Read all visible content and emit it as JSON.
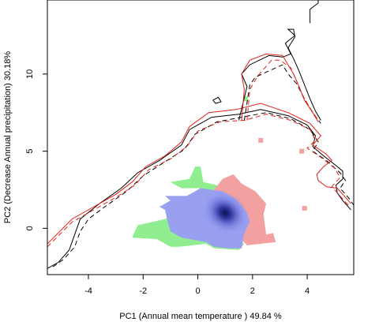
{
  "chart_data": {
    "type": "scatter",
    "title": "",
    "xlabel": "PC1 (Annual mean temperature ) 49.84 %",
    "ylabel": "PC2 (Decrease Annual precipitation) 30.18%",
    "xlim": [
      -5.5,
      5.7
    ],
    "ylim": [
      -3.0,
      14.8
    ],
    "x_ticks": [
      -4,
      -2,
      0,
      2,
      4
    ],
    "y_ticks": [
      0,
      5,
      10
    ],
    "x_tick_labels": [
      "-4",
      "-2",
      "0",
      "2",
      "4"
    ],
    "y_tick_labels": [
      "0",
      "5",
      "10"
    ],
    "grid": false,
    "legend": "none",
    "colors": {
      "green_overlap": "#90ee90",
      "blue_density": "#9aa0f0",
      "blue_core": "#0a0f50",
      "red_density": "#f2a0a0",
      "black_contour": "#000000",
      "red_contour": "#e0201a"
    },
    "regions": [
      {
        "name": "green",
        "color": "#90ee90",
        "polygon": [
          [
            -1.0,
            3.0
          ],
          [
            -0.3,
            3.2
          ],
          [
            -0.1,
            4.0
          ],
          [
            0.1,
            4.0
          ],
          [
            0.2,
            3.0
          ],
          [
            0.7,
            2.8
          ],
          [
            0.8,
            2.4
          ],
          [
            0.3,
            2.0
          ],
          [
            -0.2,
            1.9
          ],
          [
            -0.6,
            1.2
          ],
          [
            -1.2,
            0.6
          ],
          [
            -2.2,
            0.2
          ],
          [
            -2.4,
            -0.6
          ],
          [
            -1.5,
            -0.7
          ],
          [
            -1.0,
            -1.2
          ],
          [
            -0.7,
            -1.2
          ],
          [
            0.3,
            -1.0
          ],
          [
            0.6,
            -1.3
          ],
          [
            1.5,
            -1.4
          ],
          [
            1.7,
            -1.0
          ],
          [
            0.9,
            0.1
          ],
          [
            0.8,
            0.9
          ],
          [
            1.4,
            1.2
          ],
          [
            1.4,
            1.8
          ],
          [
            0.8,
            2.2
          ],
          [
            0.1,
            2.6
          ],
          [
            -0.6,
            2.6
          ]
        ]
      },
      {
        "name": "red",
        "color": "#f2a0a0",
        "polygon": [
          [
            0.9,
            3.2
          ],
          [
            1.3,
            3.5
          ],
          [
            1.6,
            2.9
          ],
          [
            2.1,
            2.4
          ],
          [
            2.5,
            1.6
          ],
          [
            2.4,
            0.9
          ],
          [
            2.5,
            -0.4
          ],
          [
            2.75,
            -0.3
          ],
          [
            2.85,
            -0.9
          ],
          [
            2.3,
            -1.0
          ],
          [
            1.8,
            -1.1
          ],
          [
            1.3,
            -0.2
          ],
          [
            0.7,
            0.9
          ],
          [
            0.5,
            1.6
          ],
          [
            0.6,
            2.5
          ]
        ]
      },
      {
        "name": "blue",
        "color": "#9aa0f0",
        "polygon": [
          [
            -1.2,
            2.1
          ],
          [
            -0.4,
            2.1
          ],
          [
            0.1,
            2.6
          ],
          [
            0.9,
            2.4
          ],
          [
            1.4,
            1.9
          ],
          [
            1.8,
            1.0
          ],
          [
            1.9,
            0.4
          ],
          [
            1.7,
            -0.3
          ],
          [
            1.6,
            -1.3
          ],
          [
            1.1,
            -1.3
          ],
          [
            0.6,
            -1.2
          ],
          [
            0.3,
            -0.9
          ],
          [
            -0.6,
            -0.6
          ],
          [
            -1.0,
            -0.2
          ],
          [
            -1.1,
            0.4
          ],
          [
            -1.2,
            1.2
          ],
          [
            -1.4,
            1.4
          ],
          [
            -1.0,
            1.8
          ]
        ]
      }
    ],
    "density_peak": [
      1.0,
      1.0
    ],
    "contours": [
      {
        "name": "black-solid",
        "color": "#000000",
        "dash": "",
        "points": [
          [
            -5.5,
            -2.6
          ],
          [
            -5.1,
            -2.2
          ],
          [
            -4.7,
            -1.4
          ],
          [
            -4.5,
            -0.4
          ],
          [
            -4.3,
            0.6
          ],
          [
            -3.6,
            1.6
          ],
          [
            -2.8,
            2.6
          ],
          [
            -2.2,
            3.6
          ],
          [
            -1.4,
            4.4
          ],
          [
            -0.6,
            5.4
          ],
          [
            -0.3,
            6.4
          ],
          [
            0.5,
            7.2
          ],
          [
            1.5,
            7.4
          ],
          [
            2.3,
            7.7
          ],
          [
            3.3,
            7.3
          ],
          [
            4.0,
            6.7
          ],
          [
            4.3,
            6.0
          ],
          [
            4.2,
            5.3
          ],
          [
            4.6,
            4.7
          ],
          [
            5.1,
            4.0
          ],
          [
            5.3,
            3.7
          ],
          [
            5.3,
            3.2
          ],
          [
            5.05,
            2.8
          ],
          [
            5.1,
            2.3
          ],
          [
            5.3,
            1.8
          ],
          [
            5.6,
            1.2
          ]
        ]
      },
      {
        "name": "black-dashed",
        "color": "#000000",
        "dash": "6,4",
        "points": [
          [
            -5.3,
            -2.5
          ],
          [
            -4.9,
            -2.0
          ],
          [
            -4.5,
            -1.2
          ],
          [
            -4.3,
            -0.2
          ],
          [
            -4.0,
            0.6
          ],
          [
            -3.4,
            1.4
          ],
          [
            -2.6,
            2.4
          ],
          [
            -2.0,
            3.4
          ],
          [
            -1.3,
            4.2
          ],
          [
            -0.5,
            5.1
          ],
          [
            -0.1,
            6.1
          ],
          [
            0.7,
            6.9
          ],
          [
            1.6,
            7.2
          ],
          [
            2.5,
            7.5
          ],
          [
            3.4,
            7.1
          ],
          [
            4.1,
            6.4
          ],
          [
            4.4,
            5.6
          ],
          [
            4.2,
            5.0
          ],
          [
            4.7,
            4.4
          ],
          [
            5.2,
            3.6
          ],
          [
            5.4,
            3.1
          ],
          [
            5.2,
            2.6
          ],
          [
            5.5,
            2.0
          ],
          [
            5.7,
            1.5
          ]
        ]
      },
      {
        "name": "red-solid",
        "color": "#e0201a",
        "dash": "",
        "points": [
          [
            -5.5,
            -1.0
          ],
          [
            -4.6,
            0.6
          ],
          [
            -3.7,
            1.5
          ],
          [
            -3.0,
            2.2
          ],
          [
            -2.4,
            3.0
          ],
          [
            -1.9,
            4.0
          ],
          [
            -1.2,
            4.7
          ],
          [
            -0.6,
            5.6
          ],
          [
            -0.3,
            6.6
          ],
          [
            0.4,
            7.5
          ],
          [
            1.4,
            7.7
          ],
          [
            2.3,
            8.1
          ],
          [
            3.3,
            7.5
          ],
          [
            4.1,
            6.8
          ],
          [
            4.5,
            6.0
          ],
          [
            4.2,
            5.4
          ],
          [
            4.7,
            4.8
          ],
          [
            4.9,
            4.4
          ],
          [
            4.6,
            4.0
          ],
          [
            4.35,
            3.5
          ],
          [
            4.4,
            3.1
          ],
          [
            4.7,
            2.7
          ],
          [
            5.1,
            2.6
          ],
          [
            5.3,
            2.2
          ],
          [
            5.6,
            1.6
          ]
        ]
      },
      {
        "name": "red-dashed",
        "color": "#e0201a",
        "dash": "6,4",
        "points": [
          [
            -5.5,
            -1.2
          ],
          [
            -4.6,
            0.4
          ],
          [
            -3.7,
            1.3
          ],
          [
            -3.0,
            2.0
          ],
          [
            -2.3,
            2.8
          ],
          [
            -1.8,
            3.8
          ],
          [
            -1.0,
            4.5
          ],
          [
            -0.4,
            5.3
          ],
          [
            0.0,
            6.3
          ],
          [
            0.8,
            6.9
          ],
          [
            1.7,
            7.0
          ],
          [
            2.5,
            7.4
          ],
          [
            3.4,
            7.0
          ],
          [
            4.1,
            6.4
          ],
          [
            4.3,
            5.7
          ],
          [
            4.0,
            5.2
          ],
          [
            4.5,
            4.6
          ],
          [
            5.0,
            3.9
          ],
          [
            5.2,
            3.3
          ],
          [
            4.9,
            2.7
          ],
          [
            5.2,
            2.1
          ],
          [
            5.5,
            1.5
          ]
        ]
      },
      {
        "name": "black-solid-top",
        "color": "#000000",
        "dash": "",
        "points": [
          [
            1.5,
            7.0
          ],
          [
            1.8,
            9.2
          ],
          [
            1.6,
            10.0
          ],
          [
            1.9,
            10.6
          ],
          [
            2.6,
            11.2
          ],
          [
            3.1,
            11.1
          ],
          [
            3.4,
            11.3
          ],
          [
            3.2,
            12.0
          ],
          [
            3.55,
            12.5
          ],
          [
            3.3,
            12.9
          ],
          [
            3.5,
            12.9
          ],
          [
            3.55,
            12.4
          ],
          [
            3.3,
            11.7
          ],
          [
            3.5,
            11.0
          ],
          [
            3.7,
            10.2
          ],
          [
            3.9,
            9.3
          ],
          [
            4.1,
            8.4
          ],
          [
            4.3,
            7.6
          ],
          [
            4.5,
            7.0
          ]
        ]
      },
      {
        "name": "black-dashed-top",
        "color": "#000000",
        "dash": "6,4",
        "points": [
          [
            1.7,
            7.0
          ],
          [
            1.9,
            9.3
          ],
          [
            2.1,
            9.8
          ],
          [
            2.6,
            10.2
          ],
          [
            3.1,
            10.6
          ],
          [
            3.3,
            10.0
          ],
          [
            3.6,
            9.4
          ],
          [
            3.9,
            8.4
          ],
          [
            4.2,
            7.5
          ],
          [
            4.5,
            6.8
          ]
        ]
      },
      {
        "name": "red-solid-top",
        "color": "#e0201a",
        "dash": "",
        "points": [
          [
            1.6,
            7.0
          ],
          [
            1.7,
            9.0
          ],
          [
            1.6,
            10.0
          ],
          [
            1.9,
            10.9
          ],
          [
            2.5,
            11.3
          ],
          [
            3.1,
            11.2
          ],
          [
            3.3,
            10.6
          ],
          [
            3.5,
            10.0
          ],
          [
            3.7,
            9.2
          ],
          [
            3.9,
            8.3
          ],
          [
            4.2,
            7.5
          ],
          [
            4.4,
            6.9
          ]
        ]
      },
      {
        "name": "red-dashed-top",
        "color": "#e0201a",
        "dash": "6,4",
        "points": [
          [
            1.8,
            7.0
          ],
          [
            1.9,
            9.0
          ],
          [
            2.2,
            9.9
          ],
          [
            2.7,
            10.9
          ],
          [
            3.0,
            10.9
          ],
          [
            3.4,
            10.4
          ],
          [
            3.6,
            9.6
          ],
          [
            3.8,
            8.7
          ],
          [
            4.1,
            7.8
          ],
          [
            4.4,
            7.0
          ]
        ]
      },
      {
        "name": "black-small-loop",
        "color": "#000000",
        "dash": "",
        "points": [
          [
            4.1,
            13.3
          ],
          [
            4.1,
            14.2
          ],
          [
            4.4,
            14.6
          ],
          [
            4.4,
            14.8
          ]
        ]
      },
      {
        "name": "black-tiny-loop",
        "color": "#000000",
        "dash": "",
        "points": [
          [
            0.55,
            8.3
          ],
          [
            0.75,
            8.5
          ],
          [
            0.85,
            8.2
          ],
          [
            0.65,
            8.1
          ],
          [
            0.55,
            8.3
          ]
        ]
      }
    ],
    "specks": [
      {
        "color": "#90ee90",
        "points": [
          [
            1.75,
            8.4
          ]
        ]
      },
      {
        "color": "#f2a0a0",
        "points": [
          [
            2.3,
            5.7
          ],
          [
            3.8,
            5.0
          ],
          [
            3.9,
            1.3
          ]
        ]
      }
    ]
  }
}
